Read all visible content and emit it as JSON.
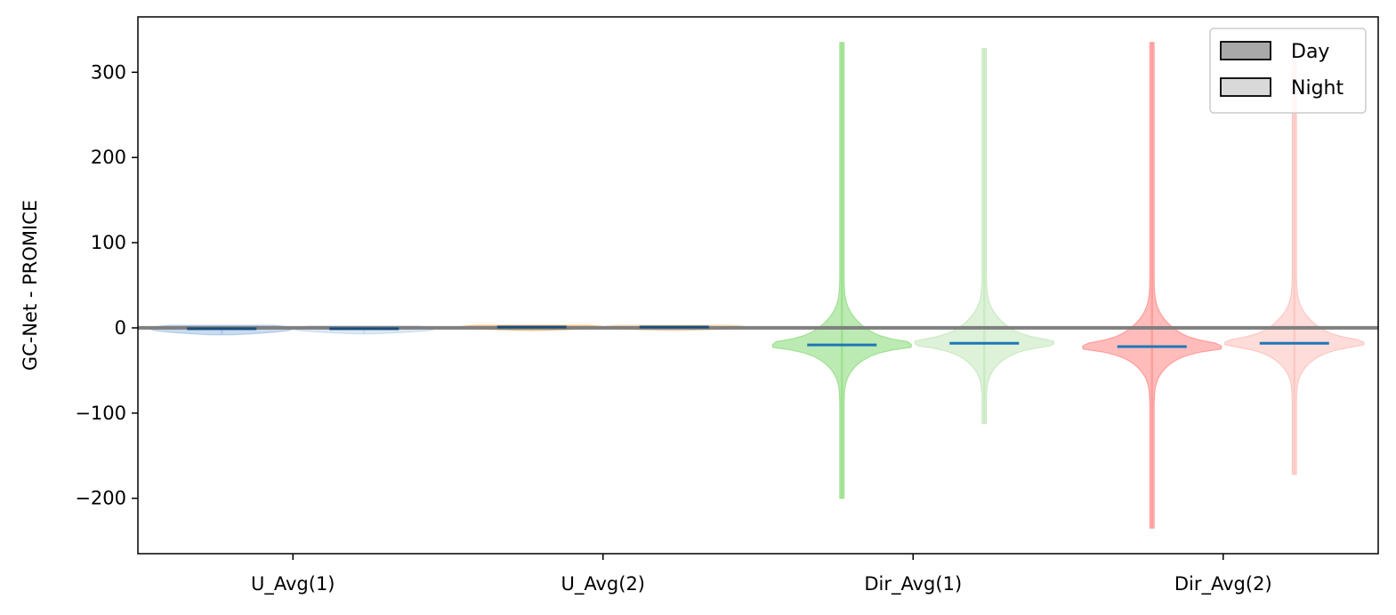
{
  "chart_data": {
    "type": "violin",
    "categories": [
      "U_Avg(1)",
      "U_Avg(2)",
      "Dir_Avg(1)",
      "Dir_Avg(2)"
    ],
    "ylabel": "GC-Net - PROMICE",
    "xlabel": "",
    "ylim": [
      -265,
      365
    ],
    "yticks": [
      -200,
      -100,
      0,
      100,
      200,
      300
    ],
    "ytick_labels": [
      "−200",
      "−100",
      "0",
      "100",
      "200",
      "300"
    ],
    "reference_line": 0,
    "legend": {
      "position": "top-right",
      "entries": [
        {
          "label": "Day",
          "color": "#a9a9a9"
        },
        {
          "label": "Night",
          "color": "#d9d9d9"
        }
      ]
    },
    "median_color": "#1f77b4",
    "series": [
      {
        "category": "U_Avg(1)",
        "period": "Day",
        "color": "#aec7e8",
        "median": -1,
        "min": -8,
        "max": 3,
        "core_low": -3,
        "core_high": 2
      },
      {
        "category": "U_Avg(1)",
        "period": "Night",
        "color": "#c6dbef",
        "median": -1,
        "min": -7,
        "max": 2,
        "core_low": -3,
        "core_high": 2
      },
      {
        "category": "U_Avg(2)",
        "period": "Day",
        "color": "#ffbb78",
        "median": 1,
        "min": -3,
        "max": 3,
        "core_low": -1,
        "core_high": 3
      },
      {
        "category": "U_Avg(2)",
        "period": "Night",
        "color": "#fdd0a2",
        "median": 1,
        "min": -3,
        "max": 3,
        "core_low": -1,
        "core_high": 3
      },
      {
        "category": "Dir_Avg(1)",
        "period": "Day",
        "color": "#98df8a",
        "median": -20,
        "min": -200,
        "max": 335,
        "core_low": -40,
        "core_high": 30
      },
      {
        "category": "Dir_Avg(1)",
        "period": "Night",
        "color": "#c7e9c0",
        "median": -18,
        "min": -112,
        "max": 328,
        "core_low": -35,
        "core_high": 15
      },
      {
        "category": "Dir_Avg(2)",
        "period": "Day",
        "color": "#ff9896",
        "median": -22,
        "min": -235,
        "max": 335,
        "core_low": -45,
        "core_high": 30
      },
      {
        "category": "Dir_Avg(2)",
        "period": "Night",
        "color": "#fcc5c0",
        "median": -18,
        "min": -172,
        "max": 325,
        "core_low": -35,
        "core_high": 15
      }
    ]
  }
}
